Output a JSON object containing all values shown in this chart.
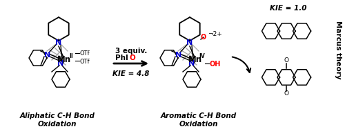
{
  "bg_color": "#ffffff",
  "kie_left": "KIE = 4.8",
  "kie_right": "KIE = 1.0",
  "label_left_line1": "Aliphatic C-H Bond",
  "label_left_line2": "Oxidation",
  "label_right_line1": "Aromatic C-H Bond",
  "label_right_line2": "Oxidation",
  "marcus_text": "Marcus theory",
  "N_color": "#0000cc",
  "O_color": "#ff0000",
  "bond_color": "#000000",
  "cage_color": "#aaaaaa",
  "figsize": [
    5.0,
    2.0
  ],
  "dpi": 100
}
